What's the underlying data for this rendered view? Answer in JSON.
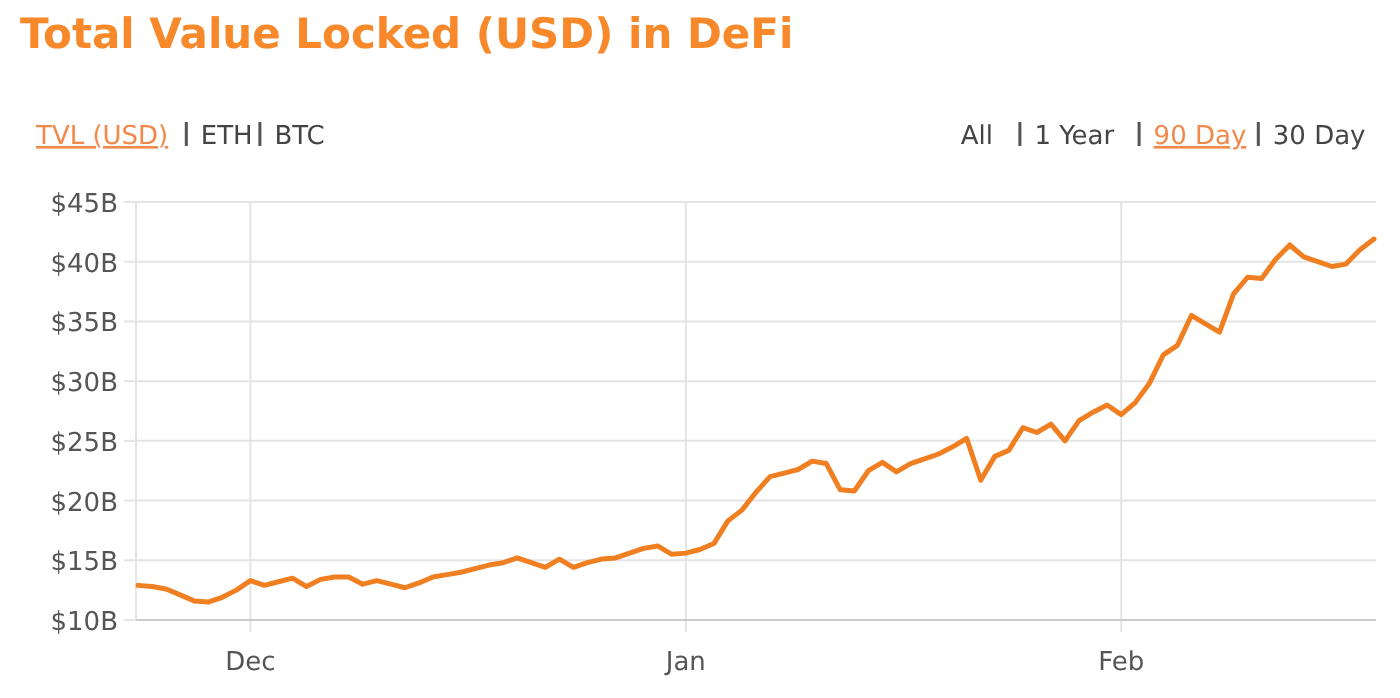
{
  "chart_data": {
    "type": "line",
    "title": "Total Value Locked (USD) in DeFi",
    "annotations": [
      "TVL (USD)",
      "ETH",
      "BTC",
      "All",
      "1 Year",
      "90 Day",
      "30 Day"
    ],
    "categories": [
      null,
      null,
      null,
      null,
      null,
      null,
      null,
      null,
      "Dec",
      null,
      null,
      null,
      null,
      null,
      null,
      null,
      null,
      null,
      null,
      null,
      null,
      null,
      null,
      null,
      null,
      null,
      null,
      null,
      null,
      null,
      null,
      null,
      null,
      null,
      null,
      null,
      null,
      null,
      null,
      "Jan",
      null,
      null,
      null,
      null,
      null,
      null,
      null,
      null,
      null,
      null,
      null,
      null,
      null,
      null,
      null,
      null,
      null,
      null,
      null,
      null,
      null,
      null,
      null,
      null,
      null,
      null,
      null,
      null,
      null,
      null,
      "Feb",
      null,
      null,
      null,
      null,
      null,
      null,
      null,
      null,
      null,
      null,
      null,
      null,
      null,
      null,
      null,
      null,
      null,
      null
    ],
    "series": [
      {
        "color": "#f07f21",
        "values": [
          12.9,
          12.8,
          12.6,
          12.1,
          11.6,
          11.5,
          11.9,
          12.5,
          13.3,
          12.9,
          13.2,
          13.5,
          12.8,
          13.4,
          13.6,
          13.6,
          13.0,
          13.3,
          13.0,
          12.7,
          13.1,
          13.6,
          13.8,
          14.0,
          14.3,
          14.6,
          14.8,
          15.2,
          14.8,
          14.4,
          15.1,
          14.4,
          14.8,
          15.1,
          15.2,
          15.6,
          16.0,
          16.2,
          15.5,
          15.6,
          15.9,
          16.4,
          18.3,
          19.2,
          20.7,
          22.0,
          22.3,
          22.6,
          23.3,
          23.1,
          20.9,
          20.8,
          22.5,
          23.2,
          22.4,
          23.1,
          23.5,
          23.9,
          24.5,
          25.2,
          21.7,
          23.7,
          24.2,
          26.1,
          25.7,
          26.4,
          25.0,
          26.7,
          27.4,
          28.0,
          27.2,
          28.2,
          29.8,
          32.2,
          33.0,
          35.5,
          34.8,
          34.1,
          37.3,
          38.7,
          38.6,
          40.2,
          41.4,
          40.4,
          40.0,
          39.6,
          39.8,
          41.0,
          41.9
        ]
      }
    ],
    "ylim": [
      10,
      45
    ],
    "yticks": [
      {
        "value": 10,
        "label": "$10B"
      },
      {
        "value": 15,
        "label": "$15B"
      },
      {
        "value": 20,
        "label": "$20B"
      },
      {
        "value": 25,
        "label": "$25B"
      },
      {
        "value": 30,
        "label": "$30B"
      },
      {
        "value": 35,
        "label": "$35B"
      },
      {
        "value": 40,
        "label": "$40B"
      },
      {
        "value": 45,
        "label": "$45B"
      }
    ],
    "grid": true,
    "marker": "none",
    "line_style": "solid"
  }
}
